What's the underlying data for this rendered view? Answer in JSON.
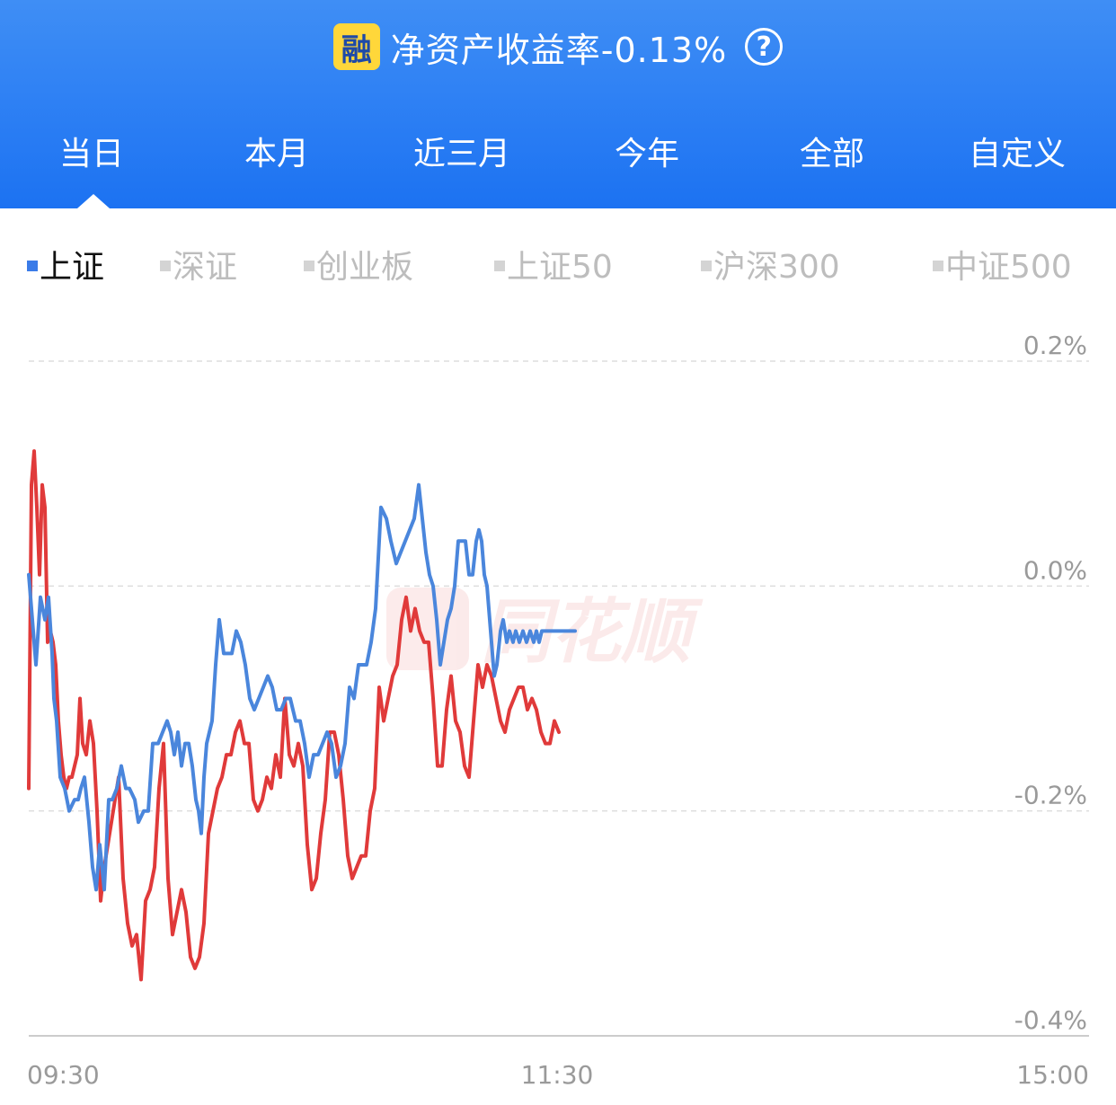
{
  "header": {
    "badge": "融",
    "title": "净资产收益率-0.13%",
    "help_icon": "question-circle-icon",
    "tabs": [
      {
        "label": "当日",
        "active": true
      },
      {
        "label": "本月"
      },
      {
        "label": "近三月"
      },
      {
        "label": "今年"
      },
      {
        "label": "全部"
      },
      {
        "label": "自定义"
      }
    ]
  },
  "legend": {
    "items": [
      {
        "label": "上证",
        "active": true
      },
      {
        "label": "深证"
      },
      {
        "label": "创业板"
      },
      {
        "label": "上证50"
      },
      {
        "label": "沪深300"
      },
      {
        "label": "中证500"
      }
    ]
  },
  "watermark": "同花顺",
  "colors": {
    "header_top": "#3f8ef5",
    "header_bottom": "#1c72f2",
    "index_line": "#4a86dc",
    "return_line": "#e03a3a",
    "active_legend": "#3a7be8"
  },
  "chart_data": {
    "type": "line",
    "y_unit": "%",
    "ylim": [
      -0.4,
      0.2
    ],
    "y_ticks": [
      "0.2%",
      "0.0%",
      "-0.2%",
      "-0.4%"
    ],
    "x_ticks": [
      "09:30",
      "11:30",
      "15:00"
    ],
    "grid": true,
    "series": [
      {
        "color": "#4a86dc",
        "x": [
          0,
          3,
          8,
          13,
          18,
          22,
          26,
          28,
          31,
          35,
          40,
          45,
          51,
          55,
          58,
          62,
          67,
          71,
          75,
          79,
          84,
          89,
          93,
          98,
          103,
          108,
          112,
          118,
          122,
          128,
          133,
          138,
          144,
          149,
          154,
          158,
          162,
          166,
          170,
          174,
          178,
          182,
          186,
          189,
          192,
          195,
          198,
          201,
          204,
          208,
          212,
          217,
          221,
          226,
          231,
          236,
          241,
          246,
          251,
          256,
          261,
          266,
          271,
          276,
          281,
          286,
          291,
          297,
          302,
          307,
          312,
          317,
          322,
          327,
          332,
          337,
          342,
          347,
          352,
          357,
          362,
          367,
          372,
          376,
          381,
          386,
          392,
          398,
          403,
          409,
          414,
          419,
          424,
          429,
          434,
          438,
          442,
          446,
          450,
          454,
          458,
          462,
          466,
          470,
          474,
          478,
          482,
          486,
          490,
          494,
          498,
          501,
          504,
          507,
          510,
          514,
          518,
          521,
          525,
          528,
          532,
          535,
          539,
          542,
          546,
          550,
          554,
          558,
          562,
          565,
          568,
          571,
          574,
          577,
          580,
          583,
          586,
          589,
          592,
          595,
          598,
          601,
          604,
          608
        ],
        "y": [
          0.01,
          -0.02,
          -0.07,
          -0.01,
          -0.03,
          -0.01,
          -0.06,
          -0.1,
          -0.12,
          -0.17,
          -0.18,
          -0.2,
          -0.19,
          -0.19,
          -0.18,
          -0.17,
          -0.21,
          -0.25,
          -0.27,
          -0.23,
          -0.27,
          -0.19,
          -0.19,
          -0.18,
          -0.16,
          -0.18,
          -0.18,
          -0.19,
          -0.21,
          -0.2,
          -0.2,
          -0.14,
          -0.14,
          -0.13,
          -0.12,
          -0.13,
          -0.15,
          -0.13,
          -0.16,
          -0.14,
          -0.14,
          -0.16,
          -0.19,
          -0.2,
          -0.22,
          -0.17,
          -0.14,
          -0.13,
          -0.12,
          -0.07,
          -0.03,
          -0.06,
          -0.06,
          -0.06,
          -0.04,
          -0.05,
          -0.07,
          -0.1,
          -0.11,
          -0.1,
          -0.09,
          -0.08,
          -0.09,
          -0.11,
          -0.11,
          -0.1,
          -0.1,
          -0.12,
          -0.12,
          -0.14,
          -0.17,
          -0.15,
          -0.15,
          -0.14,
          -0.13,
          -0.14,
          -0.17,
          -0.16,
          -0.14,
          -0.09,
          -0.1,
          -0.07,
          -0.07,
          -0.07,
          -0.05,
          -0.02,
          0.07,
          0.06,
          0.04,
          0.02,
          0.03,
          0.04,
          0.05,
          0.06,
          0.09,
          0.06,
          0.03,
          0.01,
          0.0,
          -0.03,
          -0.07,
          -0.05,
          -0.03,
          -0.02,
          0.0,
          0.04,
          0.04,
          0.04,
          0.01,
          0.01,
          0.04,
          0.05,
          0.04,
          0.01,
          0.0,
          -0.04,
          -0.08,
          -0.07,
          -0.04,
          -0.03,
          -0.05,
          -0.04,
          -0.05,
          -0.04,
          -0.05,
          -0.04,
          -0.05,
          -0.04,
          -0.05,
          -0.04,
          -0.05,
          -0.04,
          -0.04,
          -0.04,
          -0.04,
          -0.04,
          -0.04,
          -0.04,
          -0.04,
          -0.04,
          -0.04,
          -0.04,
          -0.04,
          -0.04
        ]
      },
      {
        "color": "#e03a3a",
        "x": [
          0,
          3,
          6,
          9,
          12,
          15,
          18,
          21,
          24,
          27,
          30,
          33,
          36,
          39,
          42,
          45,
          48,
          51,
          54,
          57,
          60,
          64,
          68,
          72,
          76,
          80,
          84,
          88,
          92,
          96,
          100,
          105,
          110,
          115,
          120,
          125,
          130,
          135,
          140,
          145,
          150,
          155,
          160,
          165,
          170,
          175,
          180,
          185,
          190,
          195,
          200,
          205,
          210,
          215,
          220,
          225,
          230,
          235,
          240,
          245,
          250,
          255,
          260,
          265,
          270,
          275,
          280,
          285,
          290,
          295,
          300,
          305,
          310,
          315,
          320,
          325,
          330,
          335,
          340,
          345,
          350,
          355,
          360,
          365,
          370,
          375,
          380,
          385,
          390,
          395,
          400,
          405,
          410,
          415,
          420,
          425,
          430,
          435,
          440,
          445,
          450,
          455,
          460,
          465,
          470,
          475,
          480,
          485,
          490,
          495,
          500,
          505,
          510,
          515,
          520,
          525,
          530,
          535,
          540,
          545,
          550,
          555,
          560,
          565,
          570,
          575,
          580,
          585,
          590
        ],
        "y": [
          -0.18,
          0.09,
          0.12,
          0.07,
          0.01,
          0.09,
          0.07,
          -0.05,
          -0.04,
          -0.05,
          -0.07,
          -0.12,
          -0.15,
          -0.17,
          -0.18,
          -0.17,
          -0.17,
          -0.16,
          -0.15,
          -0.1,
          -0.14,
          -0.15,
          -0.12,
          -0.14,
          -0.2,
          -0.28,
          -0.25,
          -0.23,
          -0.21,
          -0.19,
          -0.17,
          -0.26,
          -0.3,
          -0.32,
          -0.31,
          -0.35,
          -0.28,
          -0.27,
          -0.25,
          -0.18,
          -0.14,
          -0.26,
          -0.31,
          -0.29,
          -0.27,
          -0.29,
          -0.33,
          -0.34,
          -0.33,
          -0.3,
          -0.22,
          -0.2,
          -0.18,
          -0.17,
          -0.15,
          -0.15,
          -0.13,
          -0.12,
          -0.14,
          -0.14,
          -0.19,
          -0.2,
          -0.19,
          -0.17,
          -0.18,
          -0.15,
          -0.17,
          -0.1,
          -0.15,
          -0.16,
          -0.14,
          -0.16,
          -0.23,
          -0.27,
          -0.26,
          -0.22,
          -0.19,
          -0.13,
          -0.13,
          -0.15,
          -0.19,
          -0.24,
          -0.26,
          -0.25,
          -0.24,
          -0.24,
          -0.2,
          -0.18,
          -0.09,
          -0.12,
          -0.1,
          -0.08,
          -0.07,
          -0.03,
          -0.01,
          -0.04,
          -0.02,
          -0.04,
          -0.05,
          -0.05,
          -0.1,
          -0.16,
          -0.16,
          -0.11,
          -0.08,
          -0.12,
          -0.13,
          -0.16,
          -0.17,
          -0.12,
          -0.07,
          -0.09,
          -0.07,
          -0.08,
          -0.1,
          -0.12,
          -0.13,
          -0.11,
          -0.1,
          -0.09,
          -0.09,
          -0.11,
          -0.1,
          -0.11,
          -0.13,
          -0.14,
          -0.14,
          -0.12,
          -0.13
        ]
      }
    ]
  }
}
